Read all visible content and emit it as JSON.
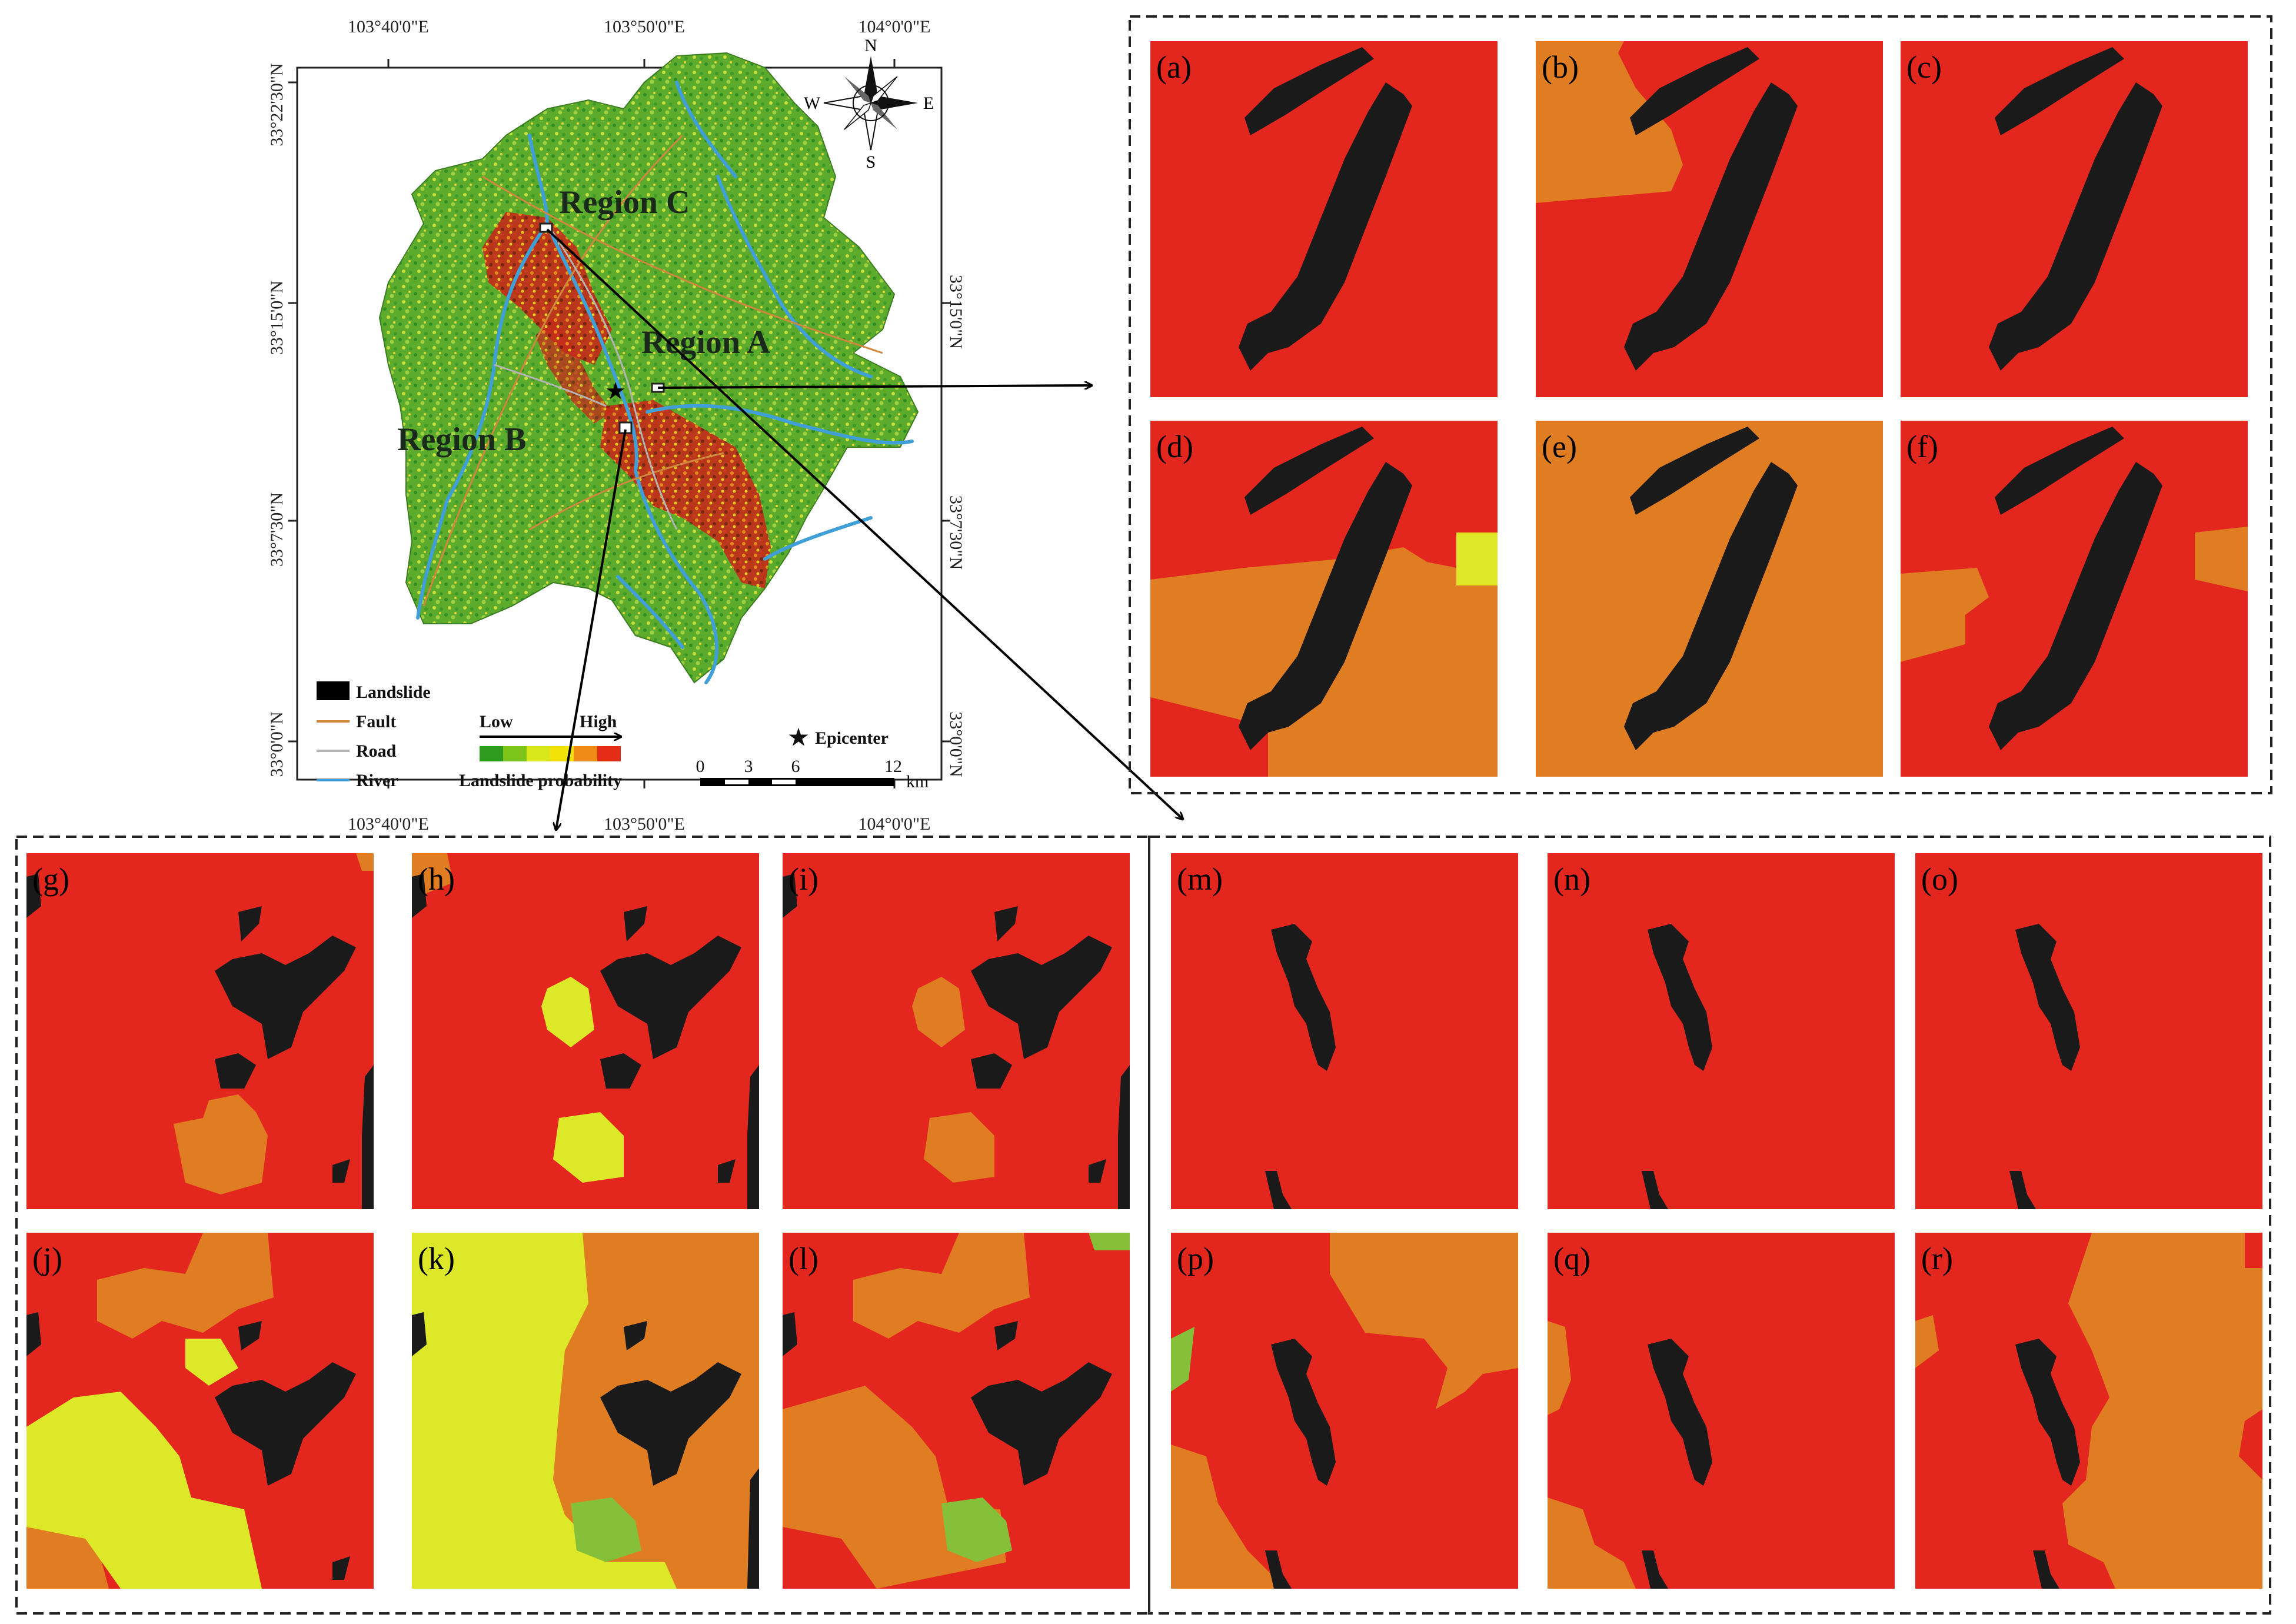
{
  "overview_map": {
    "coords": {
      "top_lon": [
        "103°40'0\"E",
        "103°50'0\"E",
        "104°0'0\"E"
      ],
      "bottom_lon": [
        "103°40'0\"E",
        "103°50'0\"E",
        "104°0'0\"E"
      ],
      "left_lat": [
        "33°22'30\"N",
        "33°15'0\"N",
        "33°7'30\"N",
        "33°0'0\"N"
      ],
      "right_lat": [
        "33°15'0\"N",
        "33°7'30\"N",
        "33°0'0\"N"
      ]
    },
    "compass": {
      "n": "N",
      "s": "S",
      "e": "E",
      "w": "W"
    },
    "regions": {
      "a": "Region A",
      "b": "Region B",
      "c": "Region C"
    },
    "legend": {
      "landslide": "Landslide",
      "fault": "Fault",
      "road": "Road",
      "river": "River",
      "low": "Low",
      "high": "High",
      "probability": "Landslide probability",
      "epicenter": "Epicenter",
      "scale_ticks": [
        "0",
        "3",
        "6",
        "12"
      ],
      "scale_unit": "km",
      "ramp_colors": [
        "#2e9a1e",
        "#7cc41a",
        "#d8e81a",
        "#f2e20a",
        "#f08a16",
        "#e42c16"
      ],
      "fault_color": "#d0873e",
      "road_color": "#b4b4b4",
      "river_color": "#3f9fd6"
    }
  },
  "panels": [
    {
      "id": "a",
      "label": "(a)"
    },
    {
      "id": "b",
      "label": "(b)"
    },
    {
      "id": "c",
      "label": "(c)"
    },
    {
      "id": "d",
      "label": "(d)"
    },
    {
      "id": "e",
      "label": "(e)"
    },
    {
      "id": "f",
      "label": "(f)"
    },
    {
      "id": "g",
      "label": "(g)"
    },
    {
      "id": "h",
      "label": "(h)"
    },
    {
      "id": "i",
      "label": "(i)"
    },
    {
      "id": "j",
      "label": "(j)"
    },
    {
      "id": "k",
      "label": "(k)"
    },
    {
      "id": "l",
      "label": "(l)"
    },
    {
      "id": "m",
      "label": "(m)"
    },
    {
      "id": "n",
      "label": "(n)"
    },
    {
      "id": "o",
      "label": "(o)"
    },
    {
      "id": "p",
      "label": "(p)"
    },
    {
      "id": "q",
      "label": "(q)"
    },
    {
      "id": "r",
      "label": "(r)"
    }
  ],
  "probability_colors": {
    "very_high": "#e3271f",
    "high": "#e07d22",
    "moderate": "#dde829",
    "low": "#86c03a",
    "landslide": "#1a1a1a"
  }
}
